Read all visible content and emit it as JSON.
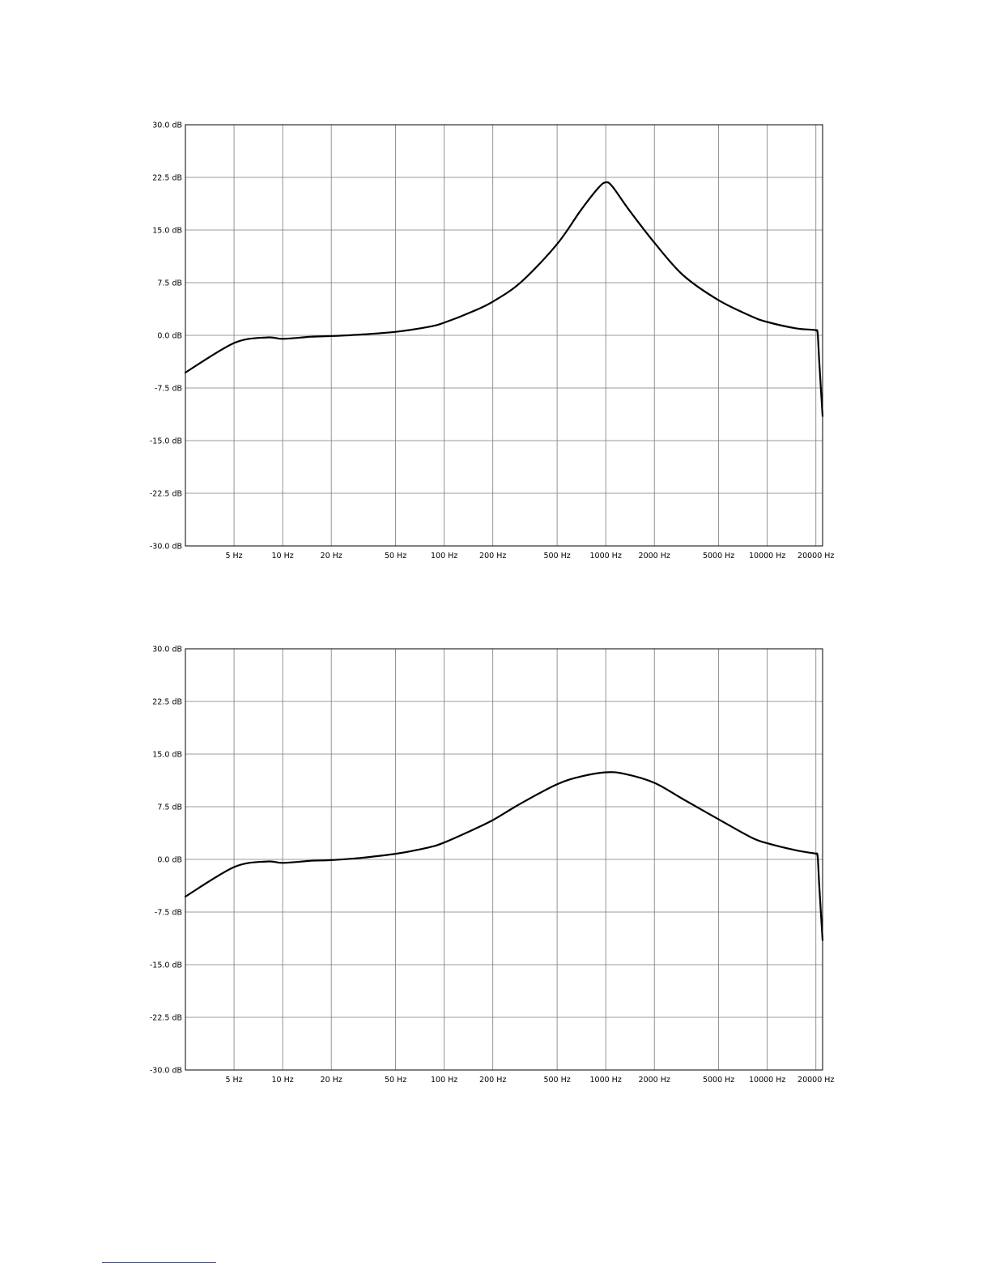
{
  "chart_data": [
    {
      "type": "line",
      "xscale": "log",
      "xlim": [
        2.5,
        22000
      ],
      "ylim": [
        -30,
        30
      ],
      "y_ticks": [
        "30.0 dB",
        "22.5 dB",
        "15.0 dB",
        "7.5 dB",
        "0.0 dB",
        "-7.5 dB",
        "-15.0 dB",
        "-22.5 dB",
        "-30.0 dB"
      ],
      "y_tick_values": [
        30,
        22.5,
        15,
        7.5,
        0,
        -7.5,
        -15,
        -22.5,
        -30
      ],
      "x_ticks": [
        "5 Hz",
        "10 Hz",
        "20 Hz",
        "50 Hz",
        "100 Hz",
        "200 Hz",
        "500 Hz",
        "1000 Hz",
        "2000 Hz",
        "5000 Hz",
        "10000 Hz",
        "20000 Hz"
      ],
      "x_tick_values": [
        5,
        10,
        20,
        50,
        100,
        200,
        500,
        1000,
        2000,
        5000,
        10000,
        20000
      ],
      "grid": true,
      "series": [
        {
          "x": [
            2.5,
            5,
            8,
            10,
            15,
            20,
            30,
            50,
            80,
            100,
            150,
            200,
            300,
            500,
            700,
            900,
            1000,
            1100,
            1400,
            2000,
            3000,
            5000,
            8000,
            10000,
            15000,
            19000,
            20000,
            20500,
            21000,
            22000
          ],
          "y": [
            -5.3,
            -1.1,
            -0.3,
            -0.5,
            -0.2,
            -0.1,
            0.1,
            0.5,
            1.2,
            1.8,
            3.4,
            4.8,
            7.6,
            13.0,
            17.8,
            21.0,
            21.8,
            21.2,
            17.8,
            13.2,
            8.6,
            5.0,
            2.7,
            1.9,
            1.0,
            0.8,
            0.7,
            0.3,
            -4.0,
            -11.5
          ]
        }
      ]
    },
    {
      "type": "line",
      "xscale": "log",
      "xlim": [
        2.5,
        22000
      ],
      "ylim": [
        -30,
        30
      ],
      "y_ticks": [
        "30.0 dB",
        "22.5 dB",
        "15.0 dB",
        "7.5 dB",
        "0.0 dB",
        "-7.5 dB",
        "-15.0 dB",
        "-22.5 dB",
        "-30.0 dB"
      ],
      "y_tick_values": [
        30,
        22.5,
        15,
        7.5,
        0,
        -7.5,
        -15,
        -22.5,
        -30
      ],
      "x_ticks": [
        "5 Hz",
        "10 Hz",
        "20 Hz",
        "50 Hz",
        "100 Hz",
        "200 Hz",
        "500 Hz",
        "1000 Hz",
        "2000 Hz",
        "5000 Hz",
        "10000 Hz",
        "20000 Hz"
      ],
      "x_tick_values": [
        5,
        10,
        20,
        50,
        100,
        200,
        500,
        1000,
        2000,
        5000,
        10000,
        20000
      ],
      "grid": true,
      "series": [
        {
          "x": [
            2.5,
            5,
            8,
            10,
            15,
            20,
            30,
            50,
            80,
            100,
            150,
            200,
            300,
            500,
            700,
            1000,
            1300,
            2000,
            3000,
            5000,
            8000,
            10000,
            15000,
            19000,
            20000,
            20500,
            21000,
            22000
          ],
          "y": [
            -5.3,
            -1.1,
            -0.3,
            -0.5,
            -0.2,
            -0.1,
            0.2,
            0.8,
            1.7,
            2.4,
            4.2,
            5.6,
            8.0,
            10.7,
            11.8,
            12.4,
            12.2,
            10.9,
            8.6,
            5.7,
            3.1,
            2.3,
            1.3,
            0.9,
            0.8,
            0.4,
            -4.0,
            -11.5
          ]
        }
      ]
    }
  ]
}
